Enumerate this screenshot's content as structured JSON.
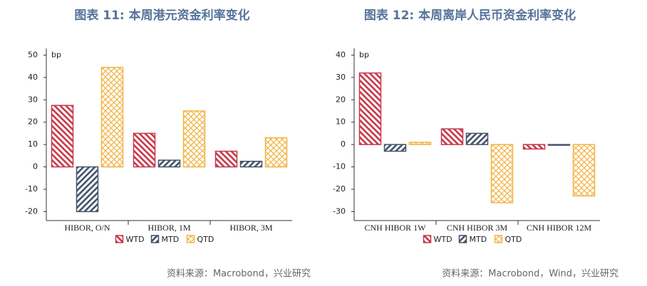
{
  "chart_data": [
    {
      "type": "bar",
      "title": "图表 11: 本周港元资金利率变化",
      "unit": "bp",
      "categories": [
        "HIBOR, O/N",
        "HIBOR, 1M",
        "HIBOR, 3M"
      ],
      "series": [
        {
          "name": "WTD",
          "color": "#c8384a",
          "pattern": "back-diagonal",
          "values": [
            27.5,
            15,
            7
          ]
        },
        {
          "name": "MTD",
          "color": "#44546a",
          "pattern": "diagonal",
          "values": [
            -20,
            3,
            2.5
          ]
        },
        {
          "name": "QTD",
          "color": "#f2b445",
          "pattern": "crosshatch",
          "values": [
            44.5,
            25,
            13
          ]
        }
      ],
      "ylim": [
        -24,
        53
      ],
      "yticks": [
        -20,
        -10,
        0,
        10,
        20,
        30,
        40,
        50
      ],
      "source": "资料来源：Macrobond，兴业研究"
    },
    {
      "type": "bar",
      "title": "图表 12: 本周离岸人民币资金利率变化",
      "unit": "bp",
      "categories": [
        "CNH HIBOR 1W",
        "CNH HIBOR 3M",
        "CNH HIBOR 12M"
      ],
      "series": [
        {
          "name": "WTD",
          "color": "#c8384a",
          "pattern": "back-diagonal",
          "values": [
            32,
            7,
            -2
          ]
        },
        {
          "name": "MTD",
          "color": "#44546a",
          "pattern": "diagonal",
          "values": [
            -3,
            5,
            -0.3
          ]
        },
        {
          "name": "QTD",
          "color": "#f2b445",
          "pattern": "crosshatch",
          "values": [
            1,
            -26,
            -23
          ]
        }
      ],
      "ylim": [
        -34,
        43
      ],
      "yticks": [
        -30,
        -20,
        -10,
        0,
        10,
        20,
        30,
        40
      ],
      "source": "资料来源：Macrobond，Wind，兴业研究"
    }
  ]
}
